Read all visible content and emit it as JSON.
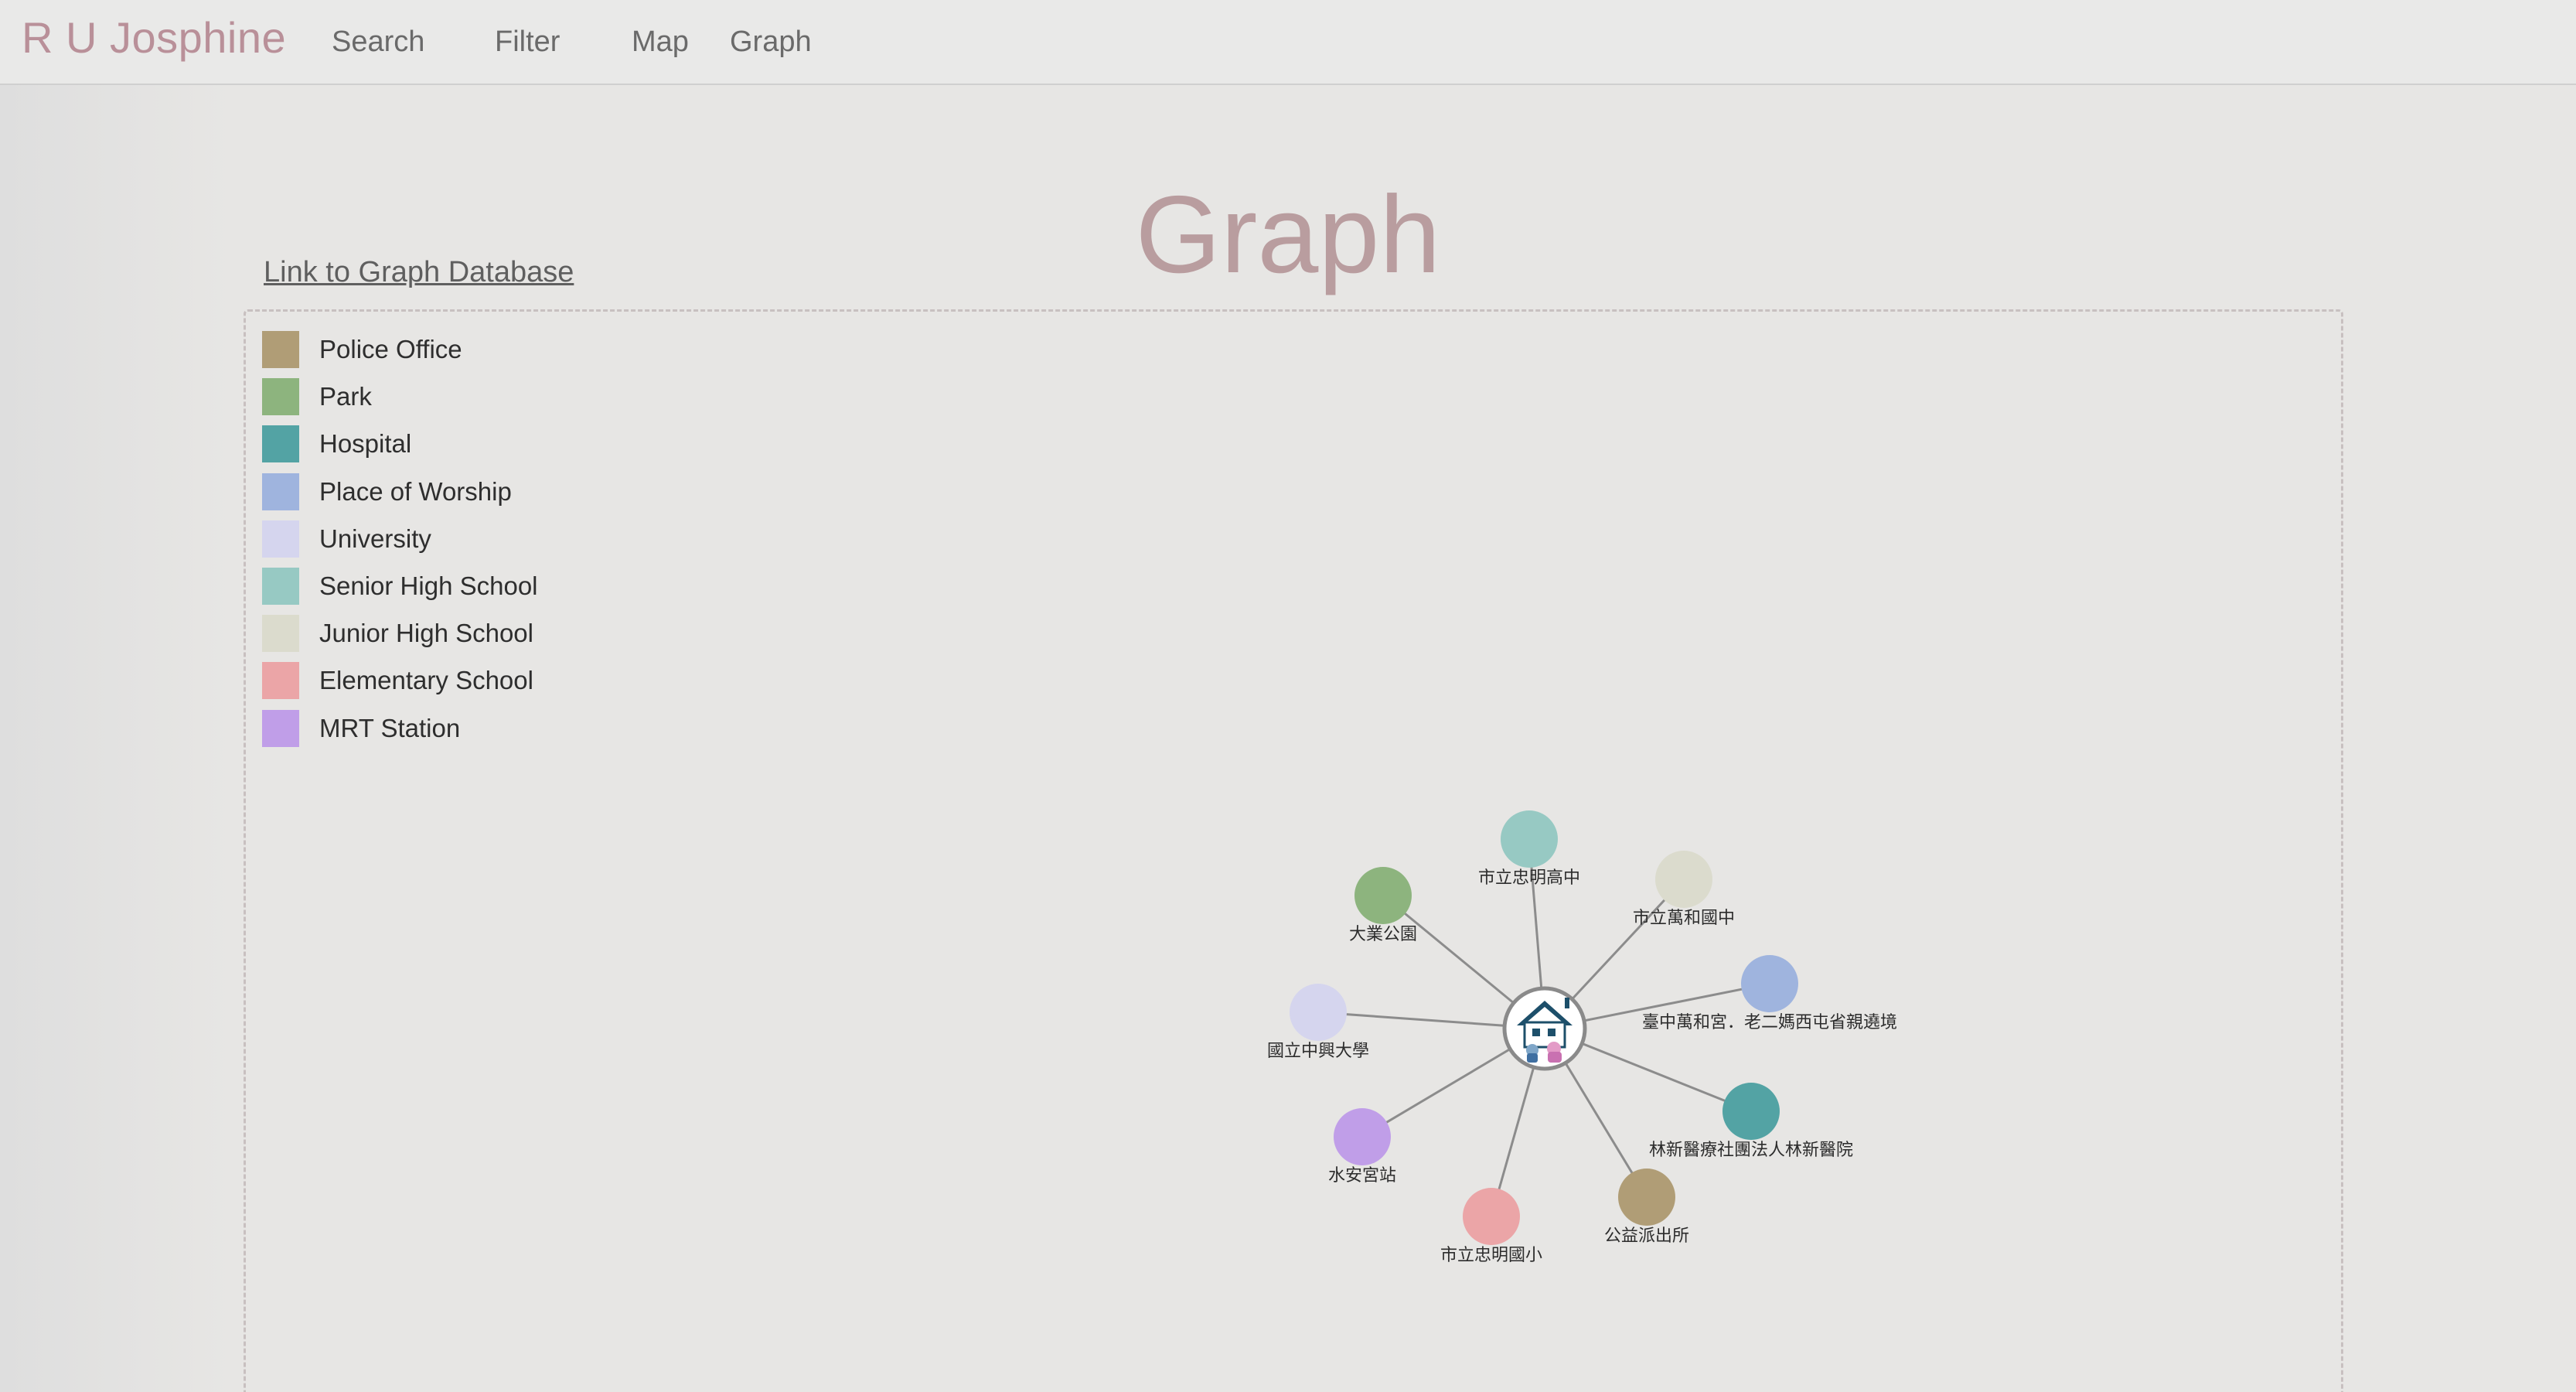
{
  "navbar": {
    "brand": "R U Josphine",
    "links": [
      {
        "label": "Search"
      },
      {
        "label": "Filter"
      },
      {
        "label": "Map"
      },
      {
        "label": "Graph"
      }
    ]
  },
  "page": {
    "title": "Graph",
    "db_link": "Link to Graph Database"
  },
  "legend": [
    {
      "label": "Police Office",
      "color": "#b09d76"
    },
    {
      "label": "Park",
      "color": "#8db47e"
    },
    {
      "label": "Hospital",
      "color": "#53a3a4"
    },
    {
      "label": "Place of Worship",
      "color": "#9fb4de"
    },
    {
      "label": "University",
      "color": "#d5d5ee"
    },
    {
      "label": "Senior High School",
      "color": "#97c9c3"
    },
    {
      "label": "Junior High School",
      "color": "#dbdbcd"
    },
    {
      "label": "Elementary School",
      "color": "#eba5a7"
    },
    {
      "label": "MRT Station",
      "color": "#c09ee8"
    }
  ],
  "graph": {
    "center": {
      "name": "house-icon"
    },
    "nodes": [
      {
        "label": "市立忠明高中",
        "category": "Senior High School",
        "color": "#97c9c3"
      },
      {
        "label": "市立萬和國中",
        "category": "Junior High School",
        "color": "#dbdbcd"
      },
      {
        "label": "大業公園",
        "category": "Park",
        "color": "#8db47e"
      },
      {
        "label": "臺中萬和宮．老二媽西屯省親遶境",
        "category": "Place of Worship",
        "color": "#9fb4de"
      },
      {
        "label": "國立中興大學",
        "category": "University",
        "color": "#d5d5ee"
      },
      {
        "label": "林新醫療社團法人林新醫院",
        "category": "Hospital",
        "color": "#53a3a4"
      },
      {
        "label": "水安宮站",
        "category": "MRT Station",
        "color": "#c09ee8"
      },
      {
        "label": "公益派出所",
        "category": "Police Office",
        "color": "#b09d76"
      },
      {
        "label": "市立忠明國小",
        "category": "Elementary School",
        "color": "#eba5a7"
      }
    ]
  }
}
